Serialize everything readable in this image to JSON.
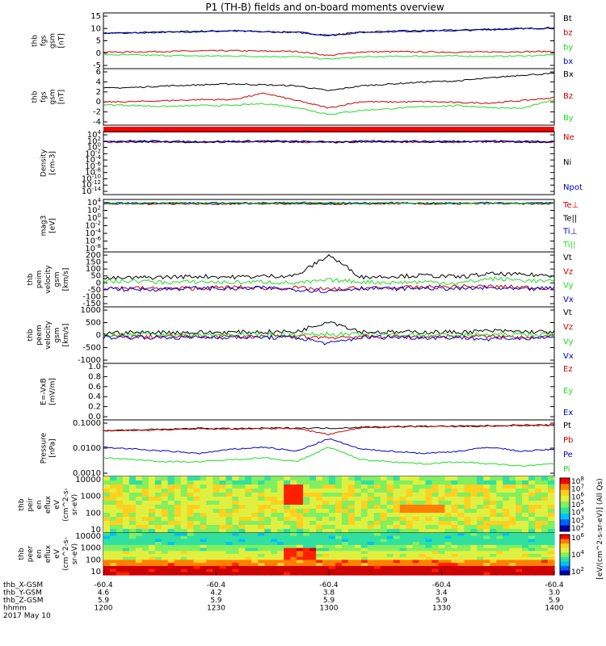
{
  "title": "P1 (TH-B) fields and on-board moments overview",
  "colors": {
    "black": "#000000",
    "red": "#cc0000",
    "green": "#22dd22",
    "blue": "#0000cc",
    "redbar": "#ff0000"
  },
  "chart_data": [
    {
      "type": "line",
      "name": "thb_fgs_gsm",
      "ylabel": [
        "thb",
        "fgs",
        "gsm",
        "[nT]"
      ],
      "yticks": [
        15,
        10,
        5,
        0,
        -5
      ],
      "ylim": [
        -6,
        16
      ],
      "series": [
        {
          "name": "Bt",
          "color": "black",
          "values": [
            8,
            8.2,
            8.5,
            8.8,
            9,
            8.6,
            8.4,
            7.2,
            8.4,
            8.8,
            9,
            9.2,
            9.6,
            9.8,
            10.2
          ]
        },
        {
          "name": "bz",
          "color": "red",
          "values": [
            0.5,
            0.6,
            0.8,
            1,
            1.1,
            0.9,
            0.8,
            -0.8,
            0.6,
            0.7,
            0.6,
            0.5,
            0.6,
            0.7,
            0.8
          ]
        },
        {
          "name": "by",
          "color": "green",
          "values": [
            -0.5,
            -0.6,
            -0.8,
            -1,
            -1,
            -1.2,
            -1.3,
            -2.2,
            -1.4,
            -1.2,
            -1,
            -1,
            -1.2,
            -1,
            -0.6
          ]
        },
        {
          "name": "bx",
          "color": "blue",
          "values": [
            8,
            8.1,
            8.4,
            8.6,
            8.8,
            8.5,
            8.3,
            7,
            8.3,
            8.6,
            8.8,
            9,
            9.4,
            9.7,
            10
          ]
        }
      ]
    },
    {
      "type": "line",
      "name": "thb_fgs_gse",
      "ylabel": [
        "thb",
        "fgs",
        "gsm",
        "[nT]"
      ],
      "yticks": [
        6,
        4,
        2,
        0,
        -2,
        -4
      ],
      "ylim": [
        -5,
        6.5
      ],
      "series": [
        {
          "name": "Bx",
          "color": "black",
          "values": [
            2.5,
            2.7,
            3,
            3.2,
            3.4,
            3.2,
            3,
            2,
            3,
            3.4,
            3.8,
            4,
            4.6,
            5.2,
            5.5
          ]
        },
        {
          "name": "Bz",
          "color": "red",
          "values": [
            -0.3,
            -0.2,
            0,
            0.2,
            0.2,
            1.5,
            0,
            -1.5,
            -0.2,
            -0.3,
            -0.2,
            -0.4,
            -0.5,
            0,
            0.6
          ]
        },
        {
          "name": "By",
          "color": "green",
          "values": [
            -0.8,
            -1,
            -1.2,
            -1,
            -1,
            -0.6,
            -1.4,
            -2.8,
            -2,
            -1.6,
            -1.2,
            -1,
            -1.4,
            -1.6,
            0.2
          ]
        }
      ]
    },
    {
      "type": "line",
      "name": "density",
      "ylabel": [
        "Density",
        "[cm-3]"
      ],
      "yticks": [
        "10^4",
        "10^2",
        "10^0",
        "10^-2",
        "10^-4",
        "10^-6",
        "10^-8",
        "10^-10",
        "10^-12",
        "10^-14"
      ],
      "series": [
        {
          "name": "Ne",
          "color": "red",
          "values": [
            1.5,
            1.6,
            1.5,
            1.4,
            1.5,
            1.6,
            1.5,
            1.4,
            1.5,
            1.6,
            1.5,
            1.5,
            1.6,
            1.5,
            1.5
          ]
        },
        {
          "name": "Ni",
          "color": "black",
          "values": [
            1.6,
            1.7,
            1.6,
            1.5,
            1.6,
            1.7,
            1.6,
            1.5,
            1.6,
            1.7,
            1.6,
            1.6,
            1.7,
            1.6,
            1.6
          ]
        },
        {
          "name": "Npot",
          "color": "blue",
          "values": [
            1.8,
            1.9,
            1.8,
            1.7,
            1.8,
            1.9,
            1.8,
            1.6,
            1.8,
            1.9,
            1.8,
            1.8,
            1.9,
            1.8,
            1.8
          ]
        }
      ]
    },
    {
      "type": "line",
      "name": "temperature",
      "ylabel": [
        "mag3",
        "[eV]"
      ],
      "yticks": [
        "10^4",
        "10^2",
        "10^0",
        "10^-2",
        "10^-4",
        "10^-6",
        "10^-8"
      ],
      "legend": [
        "Te⊥",
        "Te||",
        "Ti⊥",
        "Ti||"
      ],
      "series": [
        {
          "name": "Te⊥",
          "color": "red",
          "values": [
            3.2,
            3.2,
            3.3,
            3.2,
            3.2,
            3.3,
            3.2,
            3.1,
            3.2,
            3.3,
            3.2,
            3.2,
            3.3,
            3.2,
            3.2
          ]
        },
        {
          "name": "Te||",
          "color": "black",
          "values": [
            3.4,
            3.4,
            3.5,
            3.4,
            3.4,
            3.5,
            3.4,
            3.3,
            3.4,
            3.5,
            3.4,
            3.4,
            3.5,
            3.4,
            3.4
          ]
        },
        {
          "name": "Ti⊥",
          "color": "blue",
          "values": [
            3.6,
            3.6,
            3.7,
            3.6,
            3.6,
            3.7,
            3.8,
            3.7,
            3.6,
            3.7,
            3.6,
            3.6,
            3.7,
            3.6,
            3.6
          ]
        },
        {
          "name": "Ti||",
          "color": "green",
          "values": [
            3.5,
            3.5,
            3.6,
            3.5,
            3.5,
            3.6,
            3.7,
            3.6,
            3.5,
            3.6,
            3.5,
            3.5,
            3.6,
            3.5,
            3.5
          ]
        }
      ]
    },
    {
      "type": "line",
      "name": "peim_velocity",
      "ylabel": [
        "thb",
        "peim",
        "velocity",
        "gsm",
        "[km/s]"
      ],
      "yticks": [
        200,
        150,
        100,
        50,
        0,
        -50,
        -100,
        -150
      ],
      "ylim": [
        -150,
        200
      ],
      "series": [
        {
          "name": "Vt",
          "color": "black",
          "values": [
            30,
            35,
            40,
            45,
            40,
            45,
            50,
            180,
            40,
            45,
            50,
            40,
            60,
            55,
            50
          ]
        },
        {
          "name": "Vz",
          "color": "red",
          "values": [
            -30,
            -30,
            -35,
            -30,
            -25,
            -30,
            -30,
            -40,
            -30,
            -30,
            -25,
            -20,
            -20,
            -25,
            -30
          ]
        },
        {
          "name": "Vy",
          "color": "green",
          "values": [
            10,
            15,
            5,
            10,
            5,
            10,
            0,
            20,
            10,
            5,
            10,
            0,
            30,
            20,
            10
          ]
        },
        {
          "name": "Vx",
          "color": "blue",
          "values": [
            -30,
            -40,
            -35,
            -30,
            -35,
            -30,
            -40,
            -50,
            -30,
            -35,
            -30,
            -35,
            -30,
            -40,
            -30
          ]
        }
      ]
    },
    {
      "type": "line",
      "name": "peem_velocity",
      "ylabel": [
        "thb",
        "peem",
        "velocity",
        "gsm",
        "[km/s]"
      ],
      "yticks": [
        1000,
        500,
        0,
        -500,
        -1000
      ],
      "ylim": [
        -1000,
        1000
      ],
      "series": [
        {
          "name": "Vt",
          "color": "black",
          "values": [
            80,
            90,
            100,
            90,
            100,
            110,
            120,
            500,
            120,
            100,
            110,
            100,
            150,
            120,
            110
          ]
        },
        {
          "name": "Vz",
          "color": "red",
          "values": [
            -50,
            -60,
            -50,
            -40,
            -50,
            -60,
            -50,
            -80,
            -50,
            -60,
            -50,
            -40,
            -50,
            -60,
            -50
          ]
        },
        {
          "name": "Vy",
          "color": "green",
          "values": [
            10,
            20,
            10,
            0,
            10,
            20,
            10,
            40,
            10,
            20,
            10,
            0,
            10,
            20,
            10
          ]
        },
        {
          "name": "Vx",
          "color": "blue",
          "values": [
            -80,
            -70,
            -90,
            -80,
            -70,
            -80,
            -90,
            -300,
            -80,
            -70,
            -90,
            -80,
            -150,
            -100,
            -80
          ]
        }
      ]
    },
    {
      "type": "line",
      "name": "efield",
      "ylabel": [
        "E=-VxB",
        "[mV/m]"
      ],
      "yticks": [
        "1.0",
        "0.8",
        "0.6",
        "0.4",
        "0.2",
        "0.0"
      ],
      "ylim": [
        0,
        1
      ],
      "series": [
        {
          "name": "Ez",
          "color": "red",
          "values": []
        },
        {
          "name": "Ey",
          "color": "green",
          "values": []
        },
        {
          "name": "Ex",
          "color": "blue",
          "values": []
        }
      ]
    },
    {
      "type": "line",
      "name": "pressure",
      "ylabel": [
        "Pressure",
        "[nPa]"
      ],
      "yticks": [
        "0.1000",
        "0.0100",
        "0.0010"
      ],
      "ylim_log": [
        -3.6,
        -0.9
      ],
      "series": [
        {
          "name": "Pt",
          "color": "black",
          "values": [
            -1.4,
            -1.38,
            -1.35,
            -1.3,
            -1.32,
            -1.3,
            -1.28,
            -1.3,
            -1.25,
            -1.22,
            -1.2,
            -1.2,
            -1.18,
            -1.15,
            -1.15
          ]
        },
        {
          "name": "Pb",
          "color": "red",
          "values": [
            -1.42,
            -1.4,
            -1.37,
            -1.32,
            -1.34,
            -1.32,
            -1.3,
            -1.6,
            -1.27,
            -1.24,
            -1.22,
            -1.22,
            -1.2,
            -1.17,
            -1.17
          ]
        },
        {
          "name": "Pe",
          "color": "blue",
          "values": [
            -2.2,
            -2.3,
            -2.4,
            -2.5,
            -2.3,
            -2.2,
            -2.4,
            -1.8,
            -2.3,
            -2.4,
            -2.5,
            -2.4,
            -2.2,
            -2.4,
            -2.3
          ]
        },
        {
          "name": "Pi",
          "color": "green",
          "values": [
            -2.7,
            -2.8,
            -2.9,
            -2.9,
            -2.8,
            -2.7,
            -2.9,
            -2.2,
            -2.8,
            -2.9,
            -3,
            -2.9,
            -3,
            -3.1,
            -3.0
          ]
        }
      ]
    },
    {
      "type": "heatmap",
      "name": "peir_en_eflux",
      "ylabel": [
        "thb",
        "peir",
        "en",
        "eflux",
        "eV",
        "(cm^2-s-",
        "sr-eV)"
      ],
      "yticks": [
        "10000",
        "1000",
        "100",
        "10"
      ]
    },
    {
      "type": "heatmap",
      "name": "peer_en_eflux",
      "ylabel": [
        "thb",
        "peer",
        "en",
        "eflux",
        "eV",
        "(cm^2-s-",
        "sr-eV)"
      ],
      "yticks": [
        "10000",
        "1000",
        "100",
        "10"
      ]
    }
  ],
  "colorbar": {
    "ticks": [
      "10^8",
      "10^7",
      "10^6",
      "10^5",
      "10^4",
      "10^3",
      "10^2"
    ],
    "ticks_lower": [
      "10^6",
      "10^4",
      "10^2"
    ],
    "label": "[eV/(cm^2-s-sr-eV)] (All Qs)"
  },
  "xaxis": {
    "rows": [
      {
        "name": "thb_X-GSM",
        "values": [
          "-60.4",
          "-60.4",
          "-60.4",
          "-60.4",
          "-60.4",
          "-60.4"
        ]
      },
      {
        "name": "thb_Y-GSM",
        "values": [
          "4.6",
          "4.2",
          "3.8",
          "3.4",
          "3.0",
          ""
        ]
      },
      {
        "name": "thb_Z-GSM",
        "values": [
          "5.9",
          "5.9",
          "5.9",
          "5.9",
          "5.9",
          ""
        ]
      },
      {
        "name": "hhmm",
        "values": [
          "1200",
          "1230",
          "1300",
          "1330",
          "1400",
          ""
        ]
      }
    ],
    "date": "2017 May 10"
  }
}
